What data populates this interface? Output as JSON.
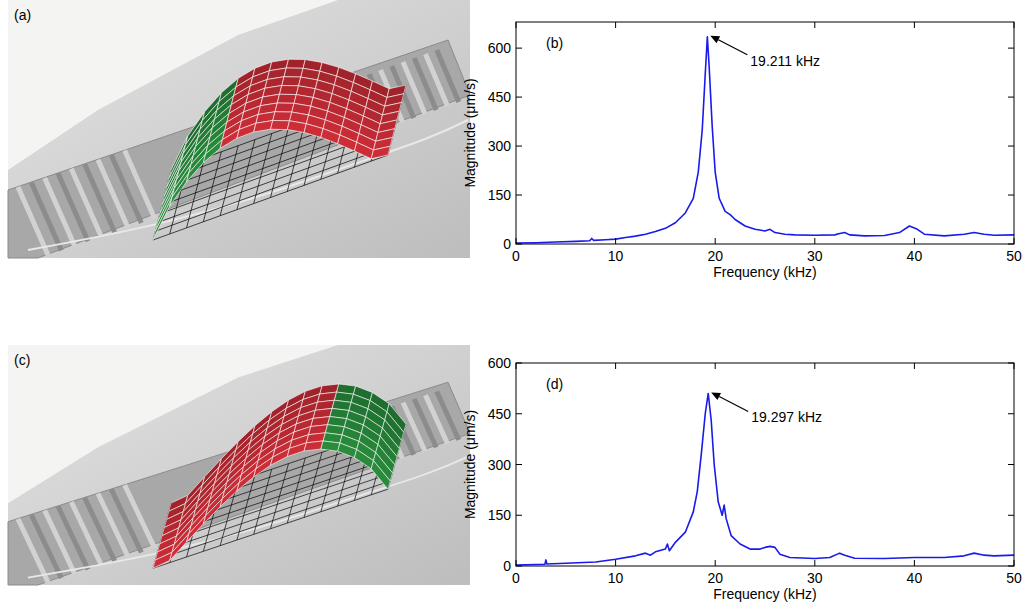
{
  "images": [
    {
      "label": "(a)"
    },
    {
      "label": "(c)"
    }
  ],
  "chart_data": [
    {
      "type": "line",
      "title": "(b)",
      "x_label": "Frequency (kHz)",
      "y_label": "Magnitude (μm/s)",
      "color": "#1a1aeb",
      "grid": false,
      "xlim": [
        0,
        50
      ],
      "xticks": [
        0,
        10,
        20,
        30,
        40,
        50
      ],
      "ylim": [
        0,
        680
      ],
      "yticks": [
        0,
        150,
        300,
        450,
        600
      ],
      "x": [
        0,
        2,
        4,
        6,
        7.4,
        7.6,
        7.8,
        9,
        10,
        11,
        12,
        13,
        14,
        15,
        16,
        17,
        17.8,
        18.3,
        18.7,
        19.0,
        19.211,
        19.4,
        19.7,
        20.0,
        20.4,
        21,
        21.5,
        22,
        23,
        24,
        25,
        25.5,
        26,
        27,
        28,
        30,
        32,
        32.5,
        33,
        33.5,
        35,
        37,
        38.5,
        39.5,
        40.3,
        41,
        43,
        45,
        46,
        47,
        48,
        50
      ],
      "values": [
        3,
        4,
        6,
        8,
        10,
        17,
        11,
        13,
        15,
        20,
        24,
        30,
        38,
        48,
        65,
        95,
        140,
        220,
        350,
        520,
        635,
        540,
        360,
        220,
        140,
        100,
        90,
        75,
        55,
        45,
        40,
        45,
        35,
        30,
        28,
        27,
        28,
        32,
        35,
        28,
        25,
        26,
        35,
        55,
        45,
        30,
        25,
        30,
        35,
        30,
        27,
        28
      ],
      "annotations": [
        {
          "text": "19.211 kHz",
          "x": 19.211,
          "y": 635
        }
      ]
    },
    {
      "type": "line",
      "title": "(d)",
      "x_label": "Frequency (kHz)",
      "y_label": "Magnitude (μm/s)",
      "color": "#1a1aeb",
      "grid": false,
      "xlim": [
        0,
        50
      ],
      "xticks": [
        0,
        10,
        20,
        30,
        40,
        50
      ],
      "ylim": [
        0,
        600
      ],
      "yticks": [
        0,
        150,
        300,
        450,
        600
      ],
      "x": [
        0,
        2.9,
        3.0,
        3.1,
        5,
        8,
        10,
        12,
        13,
        13.5,
        14,
        15,
        15.2,
        15.4,
        16,
        17,
        17.8,
        18.2,
        18.6,
        19.0,
        19.297,
        19.6,
        19.9,
        20.3,
        20.7,
        20.9,
        21.1,
        21.6,
        22.5,
        23.5,
        24.5,
        25,
        25.5,
        26,
        26.5,
        27.5,
        30,
        31.5,
        32.5,
        33,
        34,
        37,
        40,
        43,
        45,
        46,
        47,
        48,
        50
      ],
      "values": [
        3,
        5,
        18,
        6,
        8,
        12,
        20,
        30,
        38,
        32,
        42,
        50,
        65,
        45,
        70,
        100,
        160,
        220,
        330,
        450,
        510,
        430,
        300,
        190,
        150,
        180,
        140,
        90,
        65,
        50,
        50,
        55,
        58,
        55,
        35,
        25,
        22,
        25,
        38,
        32,
        23,
        22,
        25,
        25,
        30,
        38,
        32,
        30,
        32
      ],
      "annotations": [
        {
          "text": "19.297 kHz",
          "x": 19.297,
          "y": 510
        }
      ]
    }
  ]
}
